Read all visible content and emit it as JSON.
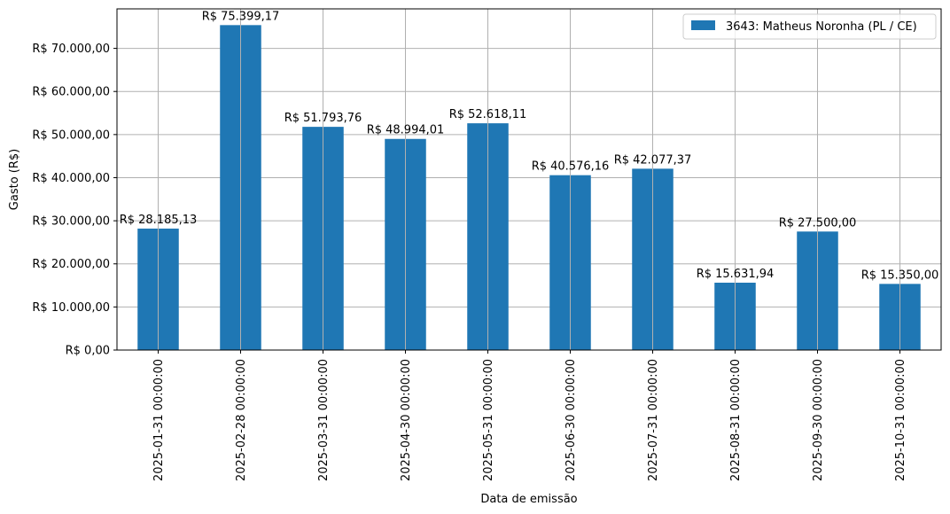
{
  "chart_data": {
    "type": "bar",
    "categories": [
      "2025-01-31 00:00:00",
      "2025-02-28 00:00:00",
      "2025-03-31 00:00:00",
      "2025-04-30 00:00:00",
      "2025-05-31 00:00:00",
      "2025-06-30 00:00:00",
      "2025-07-31 00:00:00",
      "2025-08-31 00:00:00",
      "2025-09-30 00:00:00",
      "2025-10-31 00:00:00"
    ],
    "series": [
      {
        "name": "3643: Matheus Noronha (PL / CE)",
        "color": "#1f77b4",
        "values": [
          28185.13,
          75399.17,
          51793.76,
          48994.01,
          52618.11,
          40576.16,
          42077.37,
          15631.94,
          27500.0,
          15350.0
        ],
        "value_labels": [
          "R$ 28.185,13",
          "R$ 75.399,17",
          "R$ 51.793,76",
          "R$ 48.994,01",
          "R$ 52.618,11",
          "R$ 40.576,16",
          "R$ 42.077,37",
          "R$ 15.631,94",
          "R$ 27.500,00",
          "R$ 15.350,00"
        ]
      }
    ],
    "xlabel": "Data de emissão",
    "ylabel": "Gasto (R$)",
    "ylim": [
      0,
      79169.13
    ],
    "yticks": [
      0,
      10000,
      20000,
      30000,
      40000,
      50000,
      60000,
      70000
    ],
    "ytick_labels": [
      "R$ 0,00",
      "R$ 10.000,00",
      "R$ 20.000,00",
      "R$ 30.000,00",
      "R$ 40.000,00",
      "R$ 50.000,00",
      "R$ 60.000,00",
      "R$ 70.000,00"
    ],
    "grid": true,
    "legend_position": "top-right"
  }
}
